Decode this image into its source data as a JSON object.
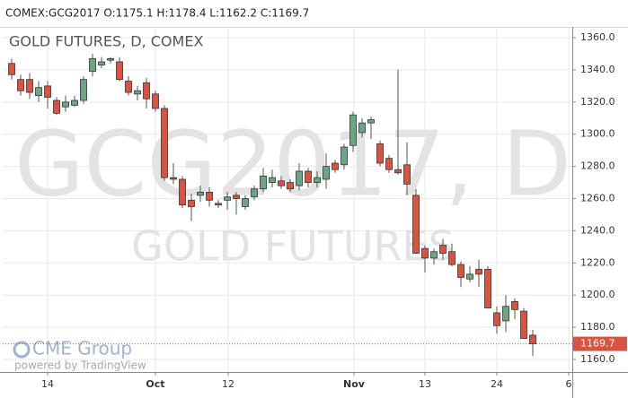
{
  "chart_data": {
    "type": "candlestick",
    "header": "COMEX:GCG2017 O:1175.1 H:1178.4 L:1162.2 C:1169.7",
    "title": "GOLD FUTURES, D, COMEX",
    "watermark": "GCG2017, D",
    "watermark_subtitle": "GOLD FUTURES",
    "logo": "CME Group",
    "credit": "powered by TradingView",
    "up_color": "#6ba583",
    "down_color": "#d75442",
    "grid": true,
    "x": [
      0,
      1,
      2,
      3,
      4,
      5,
      6,
      7,
      8,
      9,
      10,
      11,
      12,
      13,
      14,
      15,
      16,
      17,
      18,
      19,
      20,
      21,
      22,
      23,
      24,
      25,
      26,
      27,
      28,
      29,
      30,
      31,
      32,
      33,
      34,
      35,
      36,
      37,
      38,
      39,
      40,
      41,
      42,
      43,
      44,
      45,
      46,
      47,
      48,
      49,
      50,
      51,
      52,
      53,
      54,
      55,
      56,
      57,
      58
    ],
    "open": [
      1344,
      1334,
      1334,
      1324,
      1330,
      1321,
      1317,
      1318,
      1321,
      1339,
      1343,
      1346,
      1345,
      1333,
      1325,
      1332,
      1325,
      1316,
      1273,
      1272,
      1259,
      1262,
      1264,
      1257,
      1259,
      1262,
      1255,
      1261,
      1266,
      1270,
      1271,
      1270,
      1268,
      1277,
      1270,
      1272,
      1282,
      1281,
      1293,
      1301,
      1307,
      1294,
      1285,
      1278,
      1281,
      1262,
      1229,
      1223,
      1231,
      1227,
      1219,
      1210,
      1216,
      1216,
      1189,
      1184,
      1196,
      1190,
      1175.1
    ],
    "high": [
      1347,
      1337,
      1338,
      1333,
      1333,
      1323,
      1324,
      1324,
      1336,
      1350,
      1348,
      1348,
      1348,
      1336,
      1330,
      1335,
      1327,
      1318,
      1282,
      1274,
      1263,
      1268,
      1267,
      1259,
      1264,
      1264,
      1262,
      1268,
      1279,
      1278,
      1274,
      1272,
      1282,
      1279,
      1277,
      1288,
      1284,
      1294,
      1314,
      1310,
      1311,
      1296,
      1287,
      1340,
      1295,
      1266,
      1231,
      1229,
      1235,
      1232,
      1221,
      1218,
      1222,
      1218,
      1193,
      1200,
      1198,
      1192,
      1178.4
    ],
    "low": [
      1334,
      1324,
      1322,
      1320,
      1316,
      1312,
      1314,
      1317,
      1319,
      1336,
      1341,
      1344,
      1333,
      1324,
      1321,
      1316,
      1314,
      1271,
      1269,
      1254,
      1246,
      1258,
      1255,
      1254,
      1253,
      1250,
      1253,
      1259,
      1264,
      1267,
      1266,
      1264,
      1265,
      1267,
      1267,
      1266,
      1276,
      1278,
      1289,
      1298,
      1297,
      1280,
      1276,
      1275,
      1262,
      1226,
      1214,
      1219,
      1222,
      1218,
      1205,
      1208,
      1205,
      1192,
      1176,
      1177,
      1185,
      1173,
      1162.2
    ],
    "close": [
      1337,
      1327,
      1326,
      1329,
      1323,
      1313,
      1320,
      1321,
      1334,
      1347,
      1345,
      1347,
      1334,
      1326,
      1327,
      1322,
      1316,
      1273,
      1272,
      1256,
      1255,
      1264,
      1259,
      1256,
      1261,
      1260,
      1260,
      1266,
      1274,
      1273,
      1268,
      1266,
      1277,
      1270,
      1273,
      1280,
      1278,
      1292,
      1312,
      1307,
      1309,
      1282,
      1278,
      1276,
      1269,
      1226,
      1223,
      1227,
      1226,
      1219,
      1211,
      1213,
      1213,
      1192,
      1181,
      1193,
      1191,
      1173,
      1169.7
    ],
    "xlim": [
      -1,
      62.4
    ],
    "xticks": [
      {
        "value": 4,
        "label": "14"
      },
      {
        "value": 16,
        "label": "Oct"
      },
      {
        "value": 24.1,
        "label": "12"
      },
      {
        "value": 38.1,
        "label": "Nov"
      },
      {
        "value": 46,
        "label": "13"
      },
      {
        "value": 54,
        "label": "24"
      },
      {
        "value": 62,
        "label": "6"
      }
    ],
    "ylim": [
      1152.2,
      1366.7
    ],
    "yticks": [
      {
        "value": 1160,
        "label": "1160.0"
      },
      {
        "value": 1180,
        "label": "1180.0"
      },
      {
        "value": 1200,
        "label": "1200.0"
      },
      {
        "value": 1220,
        "label": "1220.0"
      },
      {
        "value": 1240,
        "label": "1240.0"
      },
      {
        "value": 1260,
        "label": "1260.0"
      },
      {
        "value": 1280,
        "label": "1280.0"
      },
      {
        "value": 1300,
        "label": "1300.0"
      },
      {
        "value": 1320,
        "label": "1320.0"
      },
      {
        "value": 1340,
        "label": "1340.0"
      },
      {
        "value": 1360,
        "label": "1360.0"
      }
    ]
  }
}
